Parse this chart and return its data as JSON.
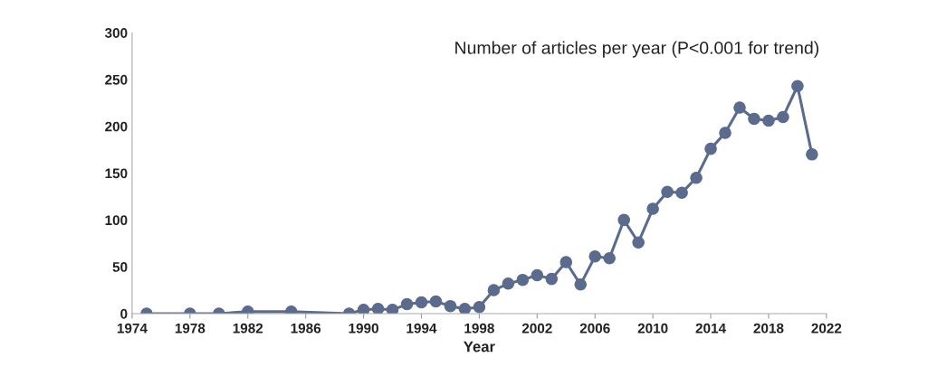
{
  "chart_data": {
    "type": "line",
    "xlabel": "Year",
    "annotations": [
      "Number of articles per year (P<0.001 for trend)"
    ],
    "x": [
      1975,
      1978,
      1980,
      1982,
      1985,
      1989,
      1990,
      1991,
      1992,
      1993,
      1994,
      1995,
      1996,
      1997,
      1998,
      1999,
      2000,
      2001,
      2002,
      2003,
      2004,
      2005,
      2006,
      2007,
      2008,
      2009,
      2010,
      2011,
      2012,
      2013,
      2014,
      2015,
      2016,
      2017,
      2018,
      2019,
      2020,
      2021
    ],
    "series": [
      {
        "color": "#5a6b8e",
        "values": [
          0,
          0,
          0,
          2,
          2,
          0,
          4,
          5,
          4,
          10,
          12,
          13,
          8,
          5,
          7,
          25,
          32,
          36,
          41,
          37,
          55,
          31,
          61,
          59,
          100,
          76,
          112,
          130,
          129,
          145,
          176,
          193,
          220,
          208,
          206,
          210,
          243,
          170
        ]
      }
    ],
    "xlim": [
      1974,
      2022
    ],
    "xticks": [
      1974,
      1978,
      1982,
      1986,
      1990,
      1994,
      1998,
      2002,
      2006,
      2010,
      2014,
      2018,
      2022
    ],
    "ylim": [
      0,
      300
    ],
    "yticks": [
      0,
      50,
      100,
      150,
      200,
      250,
      300
    ],
    "grid": false,
    "legend": false,
    "marker": "circle",
    "line_style": "solid"
  }
}
